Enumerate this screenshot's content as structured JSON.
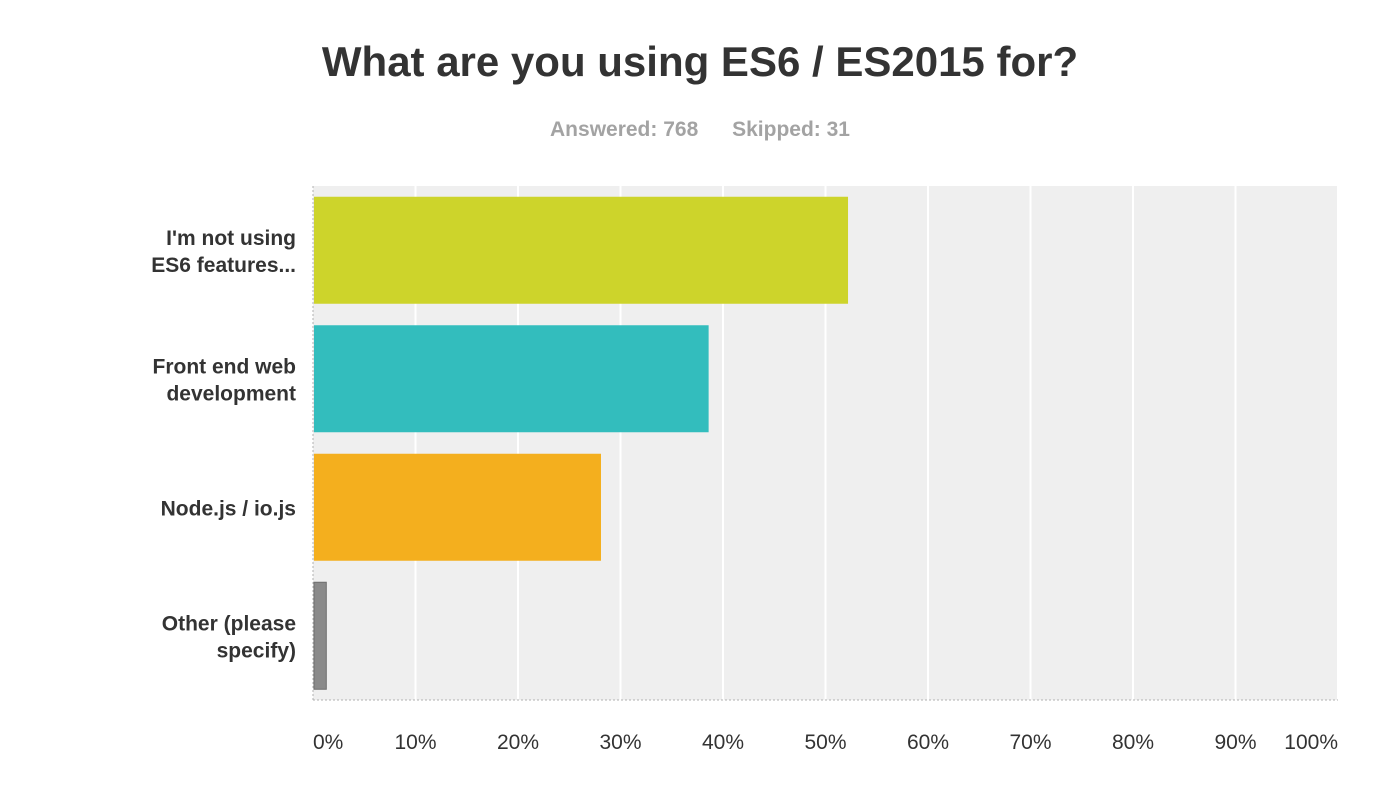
{
  "header": {
    "title": "What are you using ES6 / ES2015 for?",
    "answered": "Answered: 768",
    "skipped": "Skipped: 31"
  },
  "chart_data": {
    "type": "bar",
    "orientation": "horizontal",
    "title": "What are you using ES6 / ES2015 for?",
    "xlabel": "",
    "ylabel": "",
    "xlim": [
      0,
      100
    ],
    "grid": true,
    "categories": [
      [
        "I'm not using",
        "ES6 features..."
      ],
      [
        "Front end web",
        "development"
      ],
      [
        "Node.js / io.js"
      ],
      [
        "Other (please",
        "specify)"
      ]
    ],
    "values": [
      52.1,
      38.5,
      28.0,
      1.2
    ],
    "colors": [
      "#cdd42b",
      "#33bdbd",
      "#f4af1e",
      "#8a8a8a"
    ],
    "tick_values": [
      0,
      10,
      20,
      30,
      40,
      50,
      60,
      70,
      80,
      90,
      100
    ],
    "tick_labels": [
      "0%",
      "10%",
      "20%",
      "30%",
      "40%",
      "50%",
      "60%",
      "70%",
      "80%",
      "90%",
      "100%"
    ],
    "plot_background": "#efefef"
  }
}
